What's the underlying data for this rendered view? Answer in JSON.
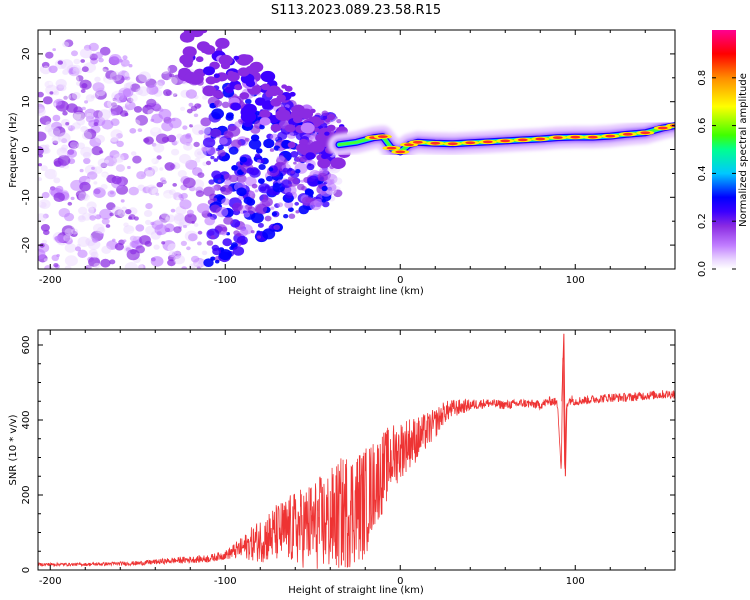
{
  "title": "S113.2023.089.23.58.R15",
  "chart_data": [
    {
      "type": "heatmap",
      "xlabel": "Height of straight line (km)",
      "ylabel": "Frequency (Hz)",
      "xlim": [
        -207,
        157
      ],
      "ylim": [
        -25,
        25
      ],
      "x_ticks": [
        -200,
        -100,
        0,
        100
      ],
      "y_ticks": [
        -20,
        -10,
        0,
        10,
        20
      ],
      "colorbar": {
        "label": "Normalized spectral amplitude",
        "range": [
          0.0,
          1.0
        ],
        "ticks": [
          0.0,
          0.2,
          0.4,
          0.6,
          0.8
        ],
        "colormap": [
          "#ffffff",
          "#e9d4ff",
          "#c07cff",
          "#8a2be2",
          "#3b00ff",
          "#0000ff",
          "#00c8ff",
          "#00ff90",
          "#40ff00",
          "#ffff00",
          "#ff8c00",
          "#ff0000",
          "#ff0090"
        ]
      },
      "ridge": [
        {
          "x": -35,
          "f": 1.0
        },
        {
          "x": -25,
          "f": 1.5
        },
        {
          "x": -15,
          "f": 2.5
        },
        {
          "x": -10,
          "f": 2.7
        },
        {
          "x": -5,
          "f": 0.3
        },
        {
          "x": 0,
          "f": -0.5
        },
        {
          "x": 5,
          "f": 1.0
        },
        {
          "x": 10,
          "f": 1.5
        },
        {
          "x": 20,
          "f": 1.3
        },
        {
          "x": 30,
          "f": 1.2
        },
        {
          "x": 40,
          "f": 1.4
        },
        {
          "x": 50,
          "f": 1.6
        },
        {
          "x": 60,
          "f": 1.8
        },
        {
          "x": 70,
          "f": 2.0
        },
        {
          "x": 80,
          "f": 2.2
        },
        {
          "x": 90,
          "f": 2.5
        },
        {
          "x": 100,
          "f": 2.6
        },
        {
          "x": 110,
          "f": 2.6
        },
        {
          "x": 120,
          "f": 2.8
        },
        {
          "x": 130,
          "f": 3.2
        },
        {
          "x": 140,
          "f": 3.5
        },
        {
          "x": 150,
          "f": 4.5
        },
        {
          "x": 157,
          "f": 5.0
        }
      ],
      "scatter_band": {
        "x_from": -207,
        "x_to": -35,
        "f_upper_at_start": 25,
        "f_lower": -25
      }
    },
    {
      "type": "line",
      "xlabel": "Height of straight line (km)",
      "ylabel": "SNR (10 * v/v)",
      "xlim": [
        -207,
        157
      ],
      "ylim": [
        0,
        640
      ],
      "x_ticks": [
        -200,
        -100,
        0,
        100
      ],
      "y_ticks": [
        0,
        200,
        400,
        600
      ],
      "series": [
        {
          "color": "#ee3333",
          "x": [
            -207,
            -180,
            -150,
            -130,
            -110,
            -100,
            -90,
            -80,
            -70,
            -60,
            -50,
            -40,
            -30,
            -20,
            -15,
            -10,
            -5,
            0,
            5,
            10,
            15,
            20,
            25,
            30,
            40,
            50,
            60,
            70,
            80,
            85,
            88,
            90,
            92,
            93,
            94,
            95,
            96,
            98,
            100,
            110,
            120,
            130,
            140,
            150,
            157
          ],
          "y": [
            15,
            15,
            18,
            25,
            30,
            40,
            60,
            80,
            100,
            110,
            120,
            130,
            160,
            180,
            230,
            260,
            300,
            320,
            340,
            350,
            370,
            390,
            420,
            430,
            440,
            445,
            440,
            445,
            440,
            450,
            450,
            440,
            260,
            600,
            250,
            440,
            450,
            455,
            450,
            455,
            460,
            460,
            465,
            468,
            470
          ],
          "noise_amplitude": [
            4,
            4,
            6,
            8,
            10,
            12,
            30,
            60,
            80,
            100,
            120,
            140,
            160,
            150,
            120,
            110,
            90,
            80,
            70,
            60,
            50,
            40,
            30,
            25,
            15,
            12,
            12,
            12,
            12,
            12,
            12,
            12,
            0,
            0,
            0,
            12,
            12,
            12,
            12,
            12,
            12,
            12,
            12,
            12,
            12
          ]
        }
      ]
    }
  ]
}
